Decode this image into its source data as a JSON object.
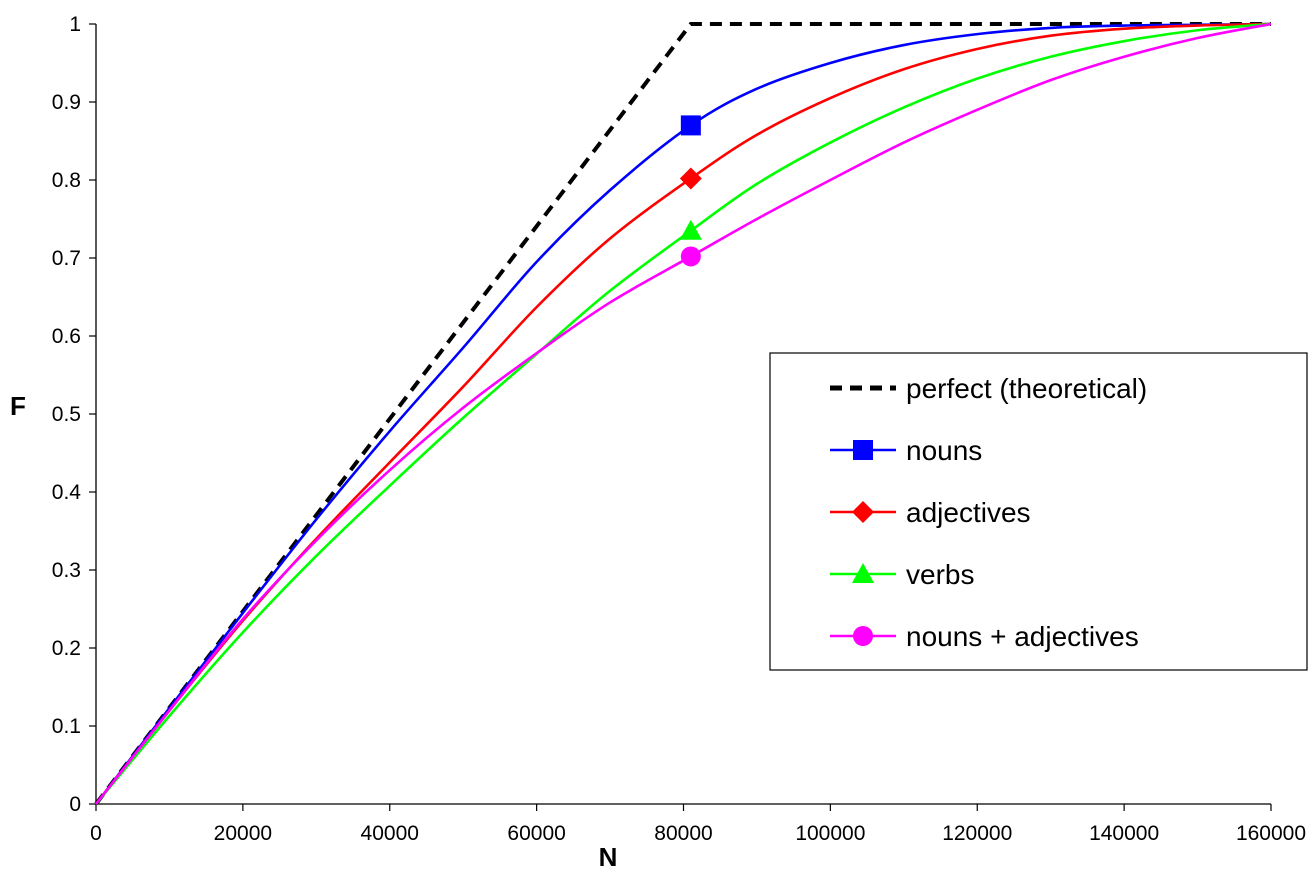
{
  "chart_data": {
    "type": "line",
    "xlabel": "N",
    "ylabel": "F",
    "xlim": [
      0,
      160000
    ],
    "ylim": [
      0,
      1
    ],
    "x_ticks": [
      "0",
      "20000",
      "40000",
      "60000",
      "80000",
      "100000",
      "120000",
      "140000",
      "160000"
    ],
    "y_ticks": [
      "0",
      "0.1",
      "0.2",
      "0.3",
      "0.4",
      "0.5",
      "0.6",
      "0.7",
      "0.8",
      "0.9",
      "1"
    ],
    "grid": false,
    "legend_position": "right",
    "series": [
      {
        "name": "perfect (theoretical)",
        "color": "#000000",
        "style": "dashed",
        "marker": "none",
        "x": [
          0,
          81000,
          160000
        ],
        "y": [
          0,
          1,
          1
        ]
      },
      {
        "name": "nouns",
        "color": "#0000ff",
        "style": "solid",
        "marker": "square",
        "marker_at": [
          81000,
          0.87
        ],
        "x": [
          0,
          10000,
          20000,
          30000,
          40000,
          50000,
          60000,
          70000,
          81000,
          90000,
          100000,
          110000,
          120000,
          130000,
          140000,
          150000,
          160000
        ],
        "y": [
          0,
          0.123,
          0.245,
          0.365,
          0.478,
          0.585,
          0.695,
          0.787,
          0.87,
          0.917,
          0.95,
          0.973,
          0.987,
          0.995,
          0.998,
          0.999,
          1
        ]
      },
      {
        "name": "adjectives",
        "color": "#ff0000",
        "style": "solid",
        "marker": "diamond",
        "marker_at": [
          81000,
          0.802
        ],
        "x": [
          0,
          10000,
          20000,
          30000,
          40000,
          50000,
          60000,
          70000,
          81000,
          90000,
          100000,
          110000,
          120000,
          130000,
          140000,
          150000,
          160000
        ],
        "y": [
          0,
          0.12,
          0.235,
          0.34,
          0.438,
          0.535,
          0.637,
          0.725,
          0.802,
          0.858,
          0.905,
          0.942,
          0.968,
          0.985,
          0.994,
          0.998,
          1
        ]
      },
      {
        "name": "verbs",
        "color": "#00ff00",
        "style": "solid",
        "marker": "triangle",
        "marker_at": [
          81000,
          0.735
        ],
        "x": [
          0,
          10000,
          20000,
          30000,
          40000,
          50000,
          60000,
          70000,
          81000,
          90000,
          100000,
          110000,
          120000,
          130000,
          140000,
          150000,
          160000
        ],
        "y": [
          0,
          0.113,
          0.22,
          0.318,
          0.408,
          0.495,
          0.577,
          0.658,
          0.735,
          0.795,
          0.848,
          0.893,
          0.93,
          0.958,
          0.978,
          0.992,
          1
        ]
      },
      {
        "name": "nouns + adjectives",
        "color": "#ff00ff",
        "style": "solid",
        "marker": "circle",
        "marker_at": [
          81000,
          0.702
        ],
        "x": [
          0,
          10000,
          20000,
          30000,
          40000,
          50000,
          60000,
          70000,
          81000,
          90000,
          100000,
          110000,
          120000,
          130000,
          140000,
          150000,
          160000
        ],
        "y": [
          0,
          0.12,
          0.237,
          0.338,
          0.428,
          0.508,
          0.578,
          0.643,
          0.702,
          0.75,
          0.8,
          0.848,
          0.89,
          0.928,
          0.958,
          0.982,
          1
        ]
      }
    ]
  }
}
